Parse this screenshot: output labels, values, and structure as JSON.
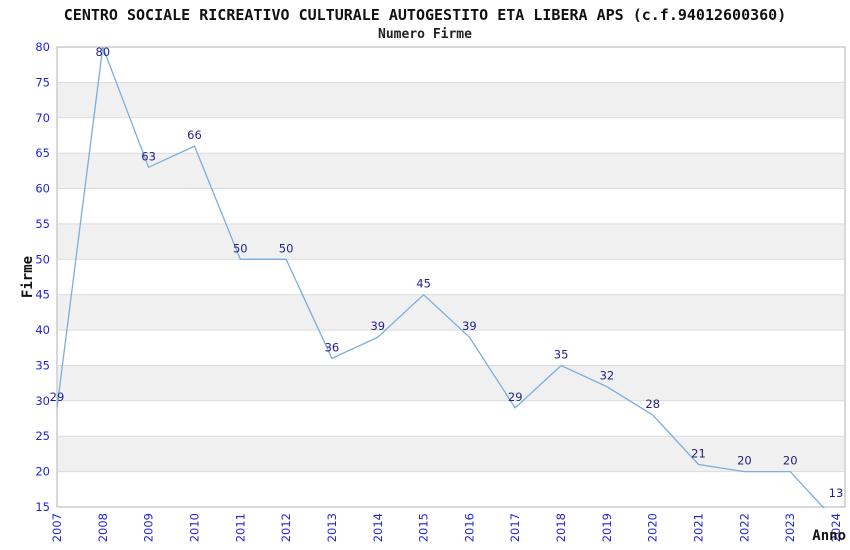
{
  "chart_data": {
    "type": "line",
    "title": "CENTRO SOCIALE RICREATIVO CULTURALE AUTOGESTITO ETA LIBERA APS (c.f.94012600360)",
    "subtitle": "Numero Firme",
    "xlabel": "Anno",
    "ylabel": "Firme",
    "categories": [
      "2007",
      "2008",
      "2009",
      "2010",
      "2011",
      "2012",
      "2013",
      "2014",
      "2015",
      "2016",
      "2017",
      "2018",
      "2019",
      "2020",
      "2021",
      "2022",
      "2023",
      "2024"
    ],
    "values": [
      29,
      80,
      63,
      66,
      50,
      50,
      36,
      39,
      45,
      39,
      29,
      35,
      32,
      28,
      21,
      20,
      20,
      13
    ],
    "ylim": [
      15,
      80
    ],
    "ytick_step": 5,
    "legend": "none",
    "grid": "horizontal-only",
    "background_bands": "alternating light-gray bands every 5 units starting at 20",
    "x_tick_rotation": -90,
    "colors": {
      "line": "#7aaede",
      "tick_labels": "#2222dd",
      "point_labels": "#22228a",
      "band": "#f0f0f0",
      "gridline": "#dcdcdc",
      "plot_border": "#b0b0b0",
      "title_text": "#111111"
    }
  }
}
